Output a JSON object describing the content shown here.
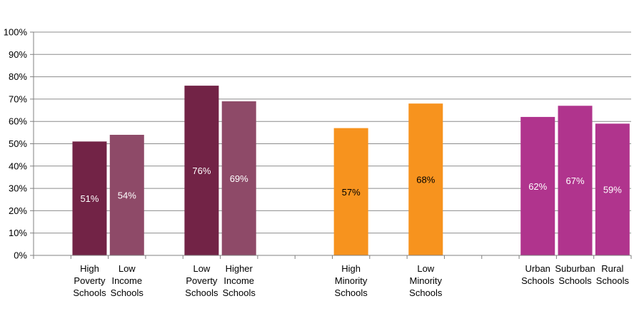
{
  "chart_data": {
    "type": "bar",
    "title": "",
    "xlabel": "",
    "ylabel": "",
    "ylim": [
      0,
      100
    ],
    "y_ticks": [
      "0%",
      "10%",
      "20%",
      "30%",
      "40%",
      "50%",
      "60%",
      "70%",
      "80%",
      "90%",
      "100%"
    ],
    "grid": true,
    "bars": [
      {
        "group": 1,
        "label": [
          "High",
          "Poverty",
          "Schools"
        ],
        "value": 51,
        "display": "51%",
        "color": "#722346",
        "text_color": "#ffffff"
      },
      {
        "group": 1,
        "label": [
          "Low",
          "Income",
          "Schools"
        ],
        "value": 54,
        "display": "54%",
        "color": "#8e4a68",
        "text_color": "#ffffff"
      },
      {
        "group": 1,
        "label": [
          "Low",
          "Poverty",
          "Schools"
        ],
        "value": 76,
        "display": "76%",
        "color": "#722346",
        "text_color": "#ffffff"
      },
      {
        "group": 1,
        "label": [
          "Higher",
          "Income",
          "Schools"
        ],
        "value": 69,
        "display": "69%",
        "color": "#8e4a68",
        "text_color": "#ffffff"
      },
      {
        "group": 2,
        "label": [
          "High",
          "Minority",
          "Schools"
        ],
        "value": 57,
        "display": "57%",
        "color": "#f7931e",
        "text_color": "#000000"
      },
      {
        "group": 2,
        "label": [
          "Low",
          "Minority",
          "Schools"
        ],
        "value": 68,
        "display": "68%",
        "color": "#f7931e",
        "text_color": "#000000"
      },
      {
        "group": 3,
        "label": [
          "Urban",
          "Schools"
        ],
        "value": 62,
        "display": "62%",
        "color": "#b0348d",
        "text_color": "#ffffff"
      },
      {
        "group": 3,
        "label": [
          "Suburban",
          "Schools"
        ],
        "value": 67,
        "display": "67%",
        "color": "#b0348d",
        "text_color": "#ffffff"
      },
      {
        "group": 3,
        "label": [
          "Rural",
          "Schools"
        ],
        "value": 59,
        "display": "59%",
        "color": "#b0348d",
        "text_color": "#ffffff"
      }
    ]
  }
}
